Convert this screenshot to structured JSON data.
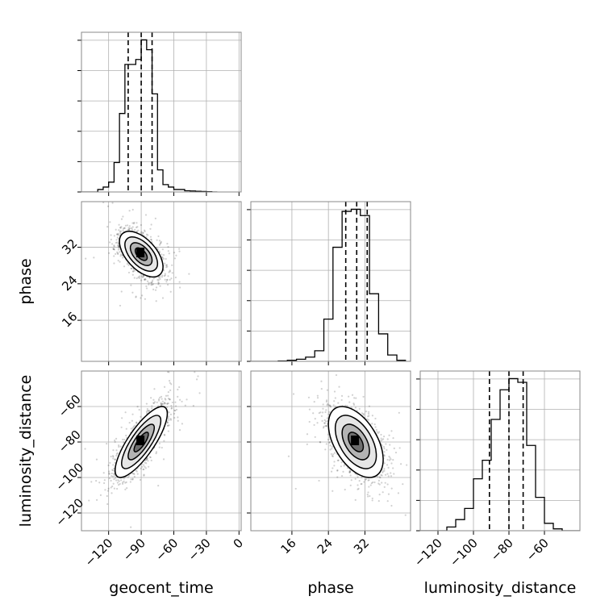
{
  "chart_data": {
    "type": "corner",
    "parameters": [
      "geocent_time",
      "phase",
      "luminosity_distance"
    ],
    "axis_labels": {
      "geocent_time": "geocent_time",
      "phase": "phase",
      "luminosity_distance": "luminosity_distance"
    },
    "ranges": {
      "geocent_time": [
        -145,
        2
      ],
      "phase": [
        7,
        42
      ],
      "luminosity_distance": [
        -130,
        -40
      ]
    },
    "ticks": {
      "geocent_time": [
        -120,
        -90,
        -60,
        -30,
        0
      ],
      "phase": [
        16,
        24,
        32
      ],
      "luminosity_distance": [
        -120,
        -100,
        -80,
        -60
      ]
    },
    "tick_labels": {
      "geocent_time": [
        "−120",
        "−90",
        "−60",
        "−30",
        "0"
      ],
      "phase": [
        "16",
        "24",
        "32"
      ],
      "luminosity_distance": [
        "−120",
        "−100",
        "−80",
        "−60"
      ]
    },
    "quantiles": {
      "geocent_time": [
        -102,
        -90,
        -80
      ],
      "phase": [
        27.8,
        30.2,
        32.5
      ],
      "luminosity_distance": [
        -91,
        -80,
        -72
      ]
    },
    "histograms": {
      "geocent_time": {
        "edges": [
          -145,
          -140,
          -135,
          -130,
          -125,
          -120,
          -115,
          -110,
          -105,
          -100,
          -95,
          -90,
          -85,
          -80,
          -75,
          -70,
          -65,
          -60,
          -55,
          -50,
          -45,
          -40,
          -35,
          -30,
          -25,
          -20
        ],
        "counts": [
          0,
          0,
          0,
          1,
          2,
          4,
          12,
          32,
          52,
          52,
          54,
          62,
          58,
          40,
          9,
          3,
          2,
          1,
          1,
          0.5,
          0.4,
          0.3,
          0.2,
          0.1,
          0
        ]
      },
      "phase": {
        "edges": [
          7,
          9,
          11,
          13,
          15,
          17,
          19,
          21,
          23,
          25,
          27,
          29,
          31,
          33,
          35,
          37,
          39,
          41
        ],
        "counts": [
          0,
          0,
          0,
          0.2,
          0.5,
          1,
          2,
          5,
          20,
          54,
          71,
          72,
          69,
          32,
          13,
          3,
          0.5
        ]
      },
      "luminosity_distance": {
        "edges": [
          -130,
          -125,
          -120,
          -115,
          -110,
          -105,
          -100,
          -95,
          -90,
          -85,
          -80,
          -75,
          -70,
          -65,
          -60,
          -55,
          -50,
          -45,
          -40
        ],
        "counts": [
          0,
          0,
          0,
          1,
          3,
          6,
          14,
          19,
          30,
          38,
          41,
          40,
          23,
          9,
          2,
          0.5,
          0,
          0
        ]
      }
    },
    "scatter_2d": [
      {
        "x": "geocent_time",
        "y": "phase",
        "center": [
          -90,
          30.5
        ],
        "sd": [
          10,
          2.5
        ],
        "rho": -0.55
      },
      {
        "x": "geocent_time",
        "y": "luminosity_distance",
        "center": [
          -90,
          -80
        ],
        "sd": [
          12,
          10
        ],
        "rho": 0.8
      },
      {
        "x": "phase",
        "y": "luminosity_distance",
        "center": [
          30,
          -80
        ],
        "sd": [
          3,
          10
        ],
        "rho": -0.5
      }
    ],
    "grid": true
  }
}
